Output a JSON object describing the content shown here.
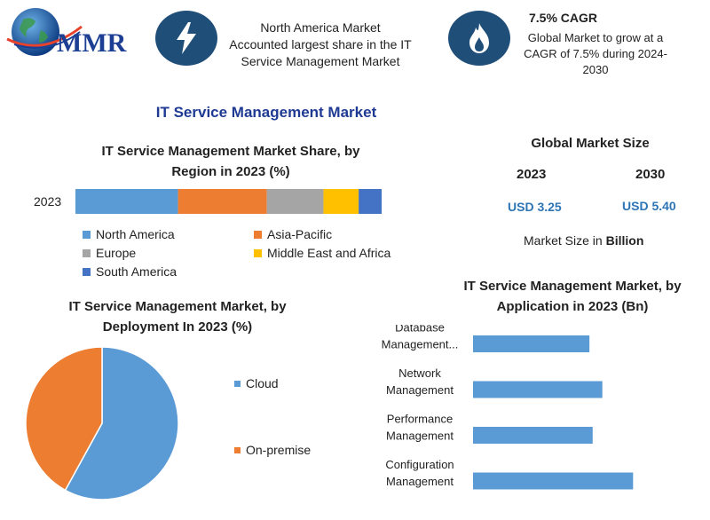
{
  "brand": {
    "logo_text": "MMR"
  },
  "header": {
    "block1": {
      "icon": "lightning-bolt-icon",
      "lines": [
        "North America Market",
        "Accounted largest share in the IT",
        "Service Management Market"
      ]
    },
    "block2": {
      "icon": "flame-icon",
      "title": "7.5% CAGR",
      "lines": [
        "Global Market to grow at a",
        "CAGR of 7.5% during 2024-",
        "2030"
      ]
    }
  },
  "page_title": "IT Service Management Market",
  "market_size": {
    "title": "Global Market Size",
    "year1": "2023",
    "value1": "USD 3.25",
    "year2": "2030",
    "value2": "USD 5.40",
    "note_prefix": "Market Size in ",
    "note_bold": "Billion"
  },
  "colors": {
    "blue": "#5b9bd5",
    "orange": "#ed7d31",
    "gray": "#a5a5a5",
    "yellow": "#ffc000",
    "darkblue": "#4472c4",
    "icon_bg": "#1f4e79",
    "title": "#1f3a93"
  },
  "chart_data": [
    {
      "type": "bar",
      "orientation": "horizontal-stacked",
      "title_lines": [
        "IT Service Management Market Share, by",
        "Region in 2023 (%)"
      ],
      "categories": [
        "2023"
      ],
      "series": [
        {
          "name": "North America",
          "values": [
            33.5
          ],
          "color": "#5b9bd5"
        },
        {
          "name": "Asia-Pacific",
          "values": [
            29
          ],
          "color": "#ed7d31"
        },
        {
          "name": "Europe",
          "values": [
            18.5
          ],
          "color": "#a5a5a5"
        },
        {
          "name": "Middle East and Africa",
          "values": [
            11.5
          ],
          "color": "#ffc000"
        },
        {
          "name": "South America",
          "values": [
            7.5
          ],
          "color": "#4472c4"
        }
      ],
      "legend_position": "bottom"
    },
    {
      "type": "pie",
      "title_lines": [
        "IT Service Management Market, by",
        "Deployment In 2023 (%)"
      ],
      "labels": [
        "Cloud",
        "On-premise"
      ],
      "values": [
        58,
        42
      ],
      "colors": [
        "#5b9bd5",
        "#ed7d31"
      ],
      "legend_position": "right"
    },
    {
      "type": "bar",
      "orientation": "horizontal",
      "title_lines": [
        "IT Service Management Market, by",
        "Application in 2023 (Bn)"
      ],
      "categories": [
        [
          "Database",
          "Management..."
        ],
        [
          "Network",
          "Management"
        ],
        [
          "Performance",
          "Management"
        ],
        [
          "Configuration",
          "Management"
        ]
      ],
      "values": [
        0.72,
        0.8,
        0.74,
        0.99
      ],
      "xlim": [
        0,
        1.4
      ],
      "color": "#5b9bd5",
      "grid": false
    }
  ]
}
